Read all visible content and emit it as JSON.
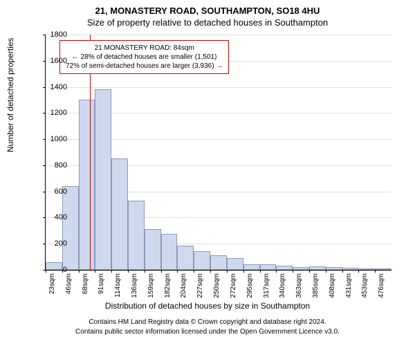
{
  "title": "21, MONASTERY ROAD, SOUTHAMPTON, SO18 4HU",
  "subtitle": "Size of property relative to detached houses in Southampton",
  "ylabel": "Number of detached properties",
  "xlabel": "Distribution of detached houses by size in Southampton",
  "footer1": "Contains HM Land Registry data © Crown copyright and database right 2024.",
  "footer2": "Contains public sector information licensed under the Open Government Licence v3.0.",
  "chart": {
    "type": "histogram",
    "background_color": "#ffffff",
    "grid_color": "#e0e0e0",
    "bar_fill": "#cfd9ed",
    "bar_border": "#8899bb",
    "ylim": [
      0,
      1800
    ],
    "ytick_step": 200,
    "yticks": [
      0,
      200,
      400,
      600,
      800,
      1000,
      1200,
      1400,
      1600,
      1800
    ],
    "x_start": 23,
    "x_bin_width": 22.67,
    "xticks": [
      "23sqm",
      "46sqm",
      "68sqm",
      "91sqm",
      "114sqm",
      "136sqm",
      "159sqm",
      "182sqm",
      "204sqm",
      "227sqm",
      "250sqm",
      "272sqm",
      "295sqm",
      "317sqm",
      "340sqm",
      "363sqm",
      "385sqm",
      "408sqm",
      "431sqm",
      "453sqm",
      "476sqm"
    ],
    "values": [
      60,
      640,
      1305,
      1380,
      850,
      530,
      310,
      275,
      185,
      145,
      110,
      90,
      45,
      40,
      30,
      20,
      25,
      20,
      15,
      10,
      10
    ],
    "marker": {
      "x_value": 84,
      "color": "#cc0000"
    },
    "annotation": {
      "line1": "21 MONASTERY ROAD: 84sqm",
      "line2": "← 28% of detached houses are smaller (1,501)",
      "line3": "72% of semi-detached houses are larger (3,936) →",
      "border_color": "#cc0000",
      "fontsize": 10
    }
  }
}
